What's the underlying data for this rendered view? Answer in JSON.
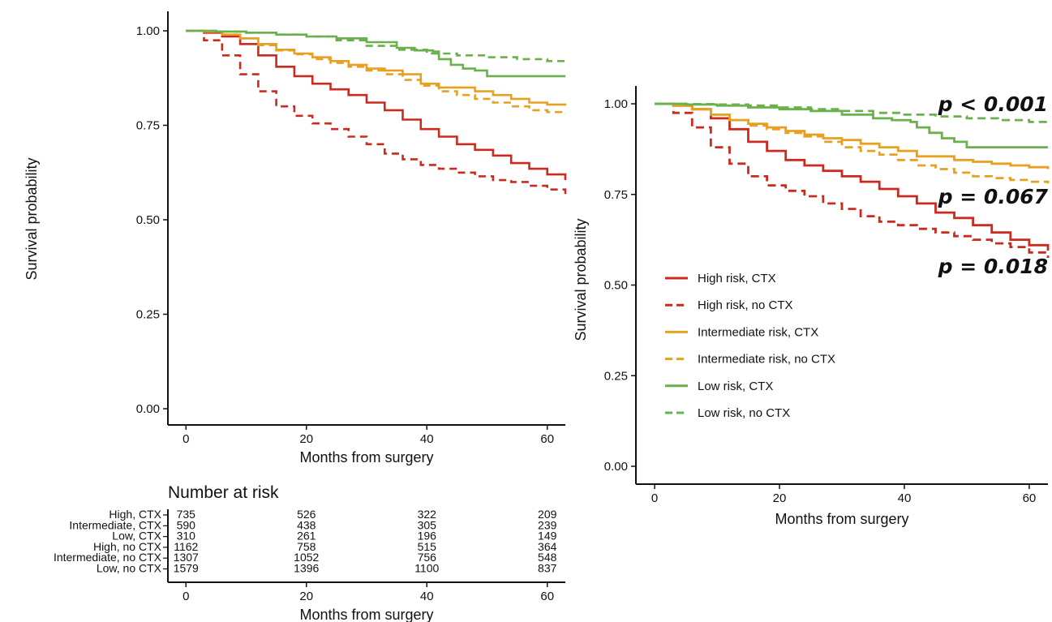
{
  "chart_data": [
    {
      "type": "line",
      "subtype": "kaplan-meier",
      "xlabel": "Months from surgery",
      "ylabel": "Survival probability",
      "xlim": [
        -3,
        63
      ],
      "ylim": [
        -0.02,
        1.05
      ],
      "xticks": [
        "0",
        "20",
        "40",
        "60"
      ],
      "yticks": [
        "0.00",
        "0.25",
        "0.50",
        "0.75",
        "1.00"
      ],
      "grid": false,
      "series": [
        {
          "group": "high-ctx",
          "x": [
            0,
            3,
            6,
            9,
            12,
            15,
            18,
            21,
            24,
            27,
            30,
            33,
            36,
            39,
            42,
            45,
            48,
            51,
            54,
            57,
            60,
            63
          ],
          "y": [
            1.0,
            0.995,
            0.985,
            0.965,
            0.935,
            0.905,
            0.88,
            0.86,
            0.845,
            0.83,
            0.81,
            0.79,
            0.765,
            0.74,
            0.72,
            0.7,
            0.685,
            0.67,
            0.65,
            0.635,
            0.62,
            0.605
          ]
        },
        {
          "group": "high-noctx",
          "x": [
            0,
            3,
            6,
            9,
            12,
            15,
            18,
            21,
            24,
            27,
            30,
            33,
            36,
            39,
            42,
            45,
            48,
            51,
            54,
            57,
            60,
            63
          ],
          "y": [
            1.0,
            0.975,
            0.935,
            0.885,
            0.84,
            0.8,
            0.775,
            0.755,
            0.74,
            0.72,
            0.7,
            0.675,
            0.66,
            0.645,
            0.635,
            0.625,
            0.615,
            0.605,
            0.6,
            0.59,
            0.58,
            0.568
          ]
        },
        {
          "group": "int-ctx",
          "x": [
            0,
            3,
            6,
            9,
            12,
            15,
            18,
            21,
            24,
            27,
            30,
            33,
            36,
            39,
            42,
            45,
            48,
            51,
            54,
            57,
            60,
            63
          ],
          "y": [
            1.0,
            0.998,
            0.99,
            0.98,
            0.965,
            0.95,
            0.94,
            0.93,
            0.92,
            0.91,
            0.9,
            0.895,
            0.885,
            0.86,
            0.85,
            0.85,
            0.84,
            0.83,
            0.82,
            0.81,
            0.805,
            0.802
          ]
        },
        {
          "group": "int-noctx",
          "x": [
            0,
            3,
            6,
            9,
            12,
            15,
            18,
            21,
            24,
            27,
            30,
            33,
            36,
            39,
            42,
            45,
            48,
            51,
            54,
            57,
            60,
            63
          ],
          "y": [
            1.0,
            0.998,
            0.99,
            0.98,
            0.962,
            0.948,
            0.938,
            0.925,
            0.915,
            0.905,
            0.895,
            0.885,
            0.87,
            0.855,
            0.84,
            0.83,
            0.82,
            0.81,
            0.8,
            0.79,
            0.785,
            0.78
          ]
        },
        {
          "group": "low-ctx",
          "x": [
            0,
            5,
            10,
            15,
            20,
            25,
            30,
            35,
            38,
            41,
            42,
            44,
            46,
            48,
            50,
            55,
            60,
            63
          ],
          "y": [
            1.0,
            0.998,
            0.995,
            0.99,
            0.985,
            0.98,
            0.97,
            0.955,
            0.948,
            0.945,
            0.925,
            0.91,
            0.9,
            0.895,
            0.88,
            0.88,
            0.88,
            0.88
          ]
        },
        {
          "group": "low-noctx",
          "x": [
            0,
            5,
            10,
            15,
            20,
            25,
            30,
            35,
            40,
            45,
            50,
            55,
            60,
            63
          ],
          "y": [
            1.0,
            0.998,
            0.995,
            0.99,
            0.985,
            0.975,
            0.96,
            0.95,
            0.94,
            0.935,
            0.93,
            0.925,
            0.92,
            0.915
          ]
        }
      ]
    },
    {
      "type": "line",
      "subtype": "kaplan-meier",
      "xlabel": "Months from surgery",
      "ylabel": "Survival probability",
      "xlim": [
        -3,
        63
      ],
      "ylim": [
        -0.02,
        1.05
      ],
      "xticks": [
        "0",
        "20",
        "40",
        "60"
      ],
      "yticks": [
        "0.00",
        "0.25",
        "0.50",
        "0.75",
        "1.00"
      ],
      "grid": false,
      "legend_position": "bottom-left",
      "series": [
        {
          "name": "High risk, CTX",
          "style": "solid",
          "color": "#cc2a1e",
          "x": [
            0,
            3,
            6,
            9,
            12,
            15,
            18,
            21,
            24,
            27,
            30,
            33,
            36,
            39,
            42,
            45,
            48,
            51,
            54,
            57,
            60,
            63
          ],
          "y": [
            1.0,
            0.995,
            0.985,
            0.96,
            0.93,
            0.895,
            0.87,
            0.845,
            0.83,
            0.815,
            0.8,
            0.785,
            0.765,
            0.745,
            0.725,
            0.7,
            0.685,
            0.665,
            0.645,
            0.625,
            0.61,
            0.595
          ]
        },
        {
          "name": "High risk, no CTX",
          "style": "dashed",
          "color": "#cc2a1e",
          "x": [
            0,
            3,
            6,
            9,
            12,
            15,
            18,
            21,
            24,
            27,
            30,
            33,
            36,
            39,
            42,
            45,
            48,
            51,
            54,
            57,
            60,
            63
          ],
          "y": [
            1.0,
            0.975,
            0.935,
            0.88,
            0.835,
            0.8,
            0.775,
            0.76,
            0.745,
            0.725,
            0.71,
            0.69,
            0.675,
            0.665,
            0.655,
            0.645,
            0.635,
            0.625,
            0.615,
            0.605,
            0.59,
            0.575
          ]
        },
        {
          "name": "Intermediate risk, CTX",
          "style": "solid",
          "color": "#e8a020",
          "x": [
            0,
            3,
            6,
            9,
            12,
            15,
            18,
            21,
            24,
            27,
            30,
            33,
            36,
            39,
            42,
            45,
            48,
            51,
            54,
            57,
            60,
            63
          ],
          "y": [
            1.0,
            0.995,
            0.985,
            0.97,
            0.955,
            0.945,
            0.935,
            0.925,
            0.915,
            0.905,
            0.9,
            0.89,
            0.88,
            0.87,
            0.855,
            0.855,
            0.845,
            0.84,
            0.835,
            0.83,
            0.825,
            0.82
          ]
        },
        {
          "name": "Intermediate risk, no CTX",
          "style": "dashed",
          "color": "#e8a020",
          "x": [
            0,
            3,
            6,
            9,
            12,
            15,
            18,
            21,
            24,
            27,
            30,
            33,
            36,
            39,
            42,
            45,
            48,
            51,
            54,
            57,
            60,
            63
          ],
          "y": [
            1.0,
            0.995,
            0.985,
            0.97,
            0.955,
            0.94,
            0.93,
            0.92,
            0.91,
            0.895,
            0.88,
            0.87,
            0.86,
            0.845,
            0.83,
            0.82,
            0.81,
            0.8,
            0.795,
            0.79,
            0.785,
            0.78
          ]
        },
        {
          "name": "Low risk, CTX",
          "style": "solid",
          "color": "#6ab04c",
          "x": [
            0,
            5,
            10,
            15,
            20,
            25,
            30,
            35,
            38,
            41,
            42,
            44,
            46,
            48,
            50,
            55,
            60,
            63
          ],
          "y": [
            1.0,
            0.998,
            0.995,
            0.99,
            0.985,
            0.98,
            0.97,
            0.96,
            0.955,
            0.95,
            0.935,
            0.92,
            0.905,
            0.895,
            0.88,
            0.88,
            0.88,
            0.88
          ]
        },
        {
          "name": "Low risk, no CTX",
          "style": "dashed",
          "color": "#6ab04c",
          "x": [
            0,
            5,
            10,
            15,
            20,
            25,
            30,
            35,
            40,
            45,
            50,
            55,
            60,
            63
          ],
          "y": [
            1.0,
            0.999,
            0.998,
            0.995,
            0.99,
            0.985,
            0.98,
            0.975,
            0.97,
            0.965,
            0.96,
            0.955,
            0.95,
            0.948
          ]
        }
      ],
      "annotations": [
        {
          "text": "p < 0.001",
          "group": "low"
        },
        {
          "text": "p = 0.067",
          "group": "intermediate"
        },
        {
          "text": "p = 0.018",
          "group": "high"
        }
      ]
    }
  ],
  "colors": {
    "high": "#cc2a1e",
    "intermediate": "#e8a020",
    "low": "#6ab04c"
  },
  "risk_table": {
    "title": "Number at risk",
    "xlabel": "Months from surgery",
    "xticks": [
      "0",
      "20",
      "40",
      "60"
    ],
    "rows": [
      {
        "label": "High, CTX",
        "values": [
          "735",
          "526",
          "322",
          "209"
        ]
      },
      {
        "label": "Intermediate, CTX",
        "values": [
          "590",
          "438",
          "305",
          "239"
        ]
      },
      {
        "label": "Low, CTX",
        "values": [
          "310",
          "261",
          "196",
          "149"
        ]
      },
      {
        "label": "High, no CTX",
        "values": [
          "1162",
          "758",
          "515",
          "364"
        ]
      },
      {
        "label": "Intermediate, no CTX",
        "values": [
          "1307",
          "1052",
          "756",
          "548"
        ]
      },
      {
        "label": "Low, no CTX",
        "values": [
          "1579",
          "1396",
          "1100",
          "837"
        ]
      }
    ]
  }
}
